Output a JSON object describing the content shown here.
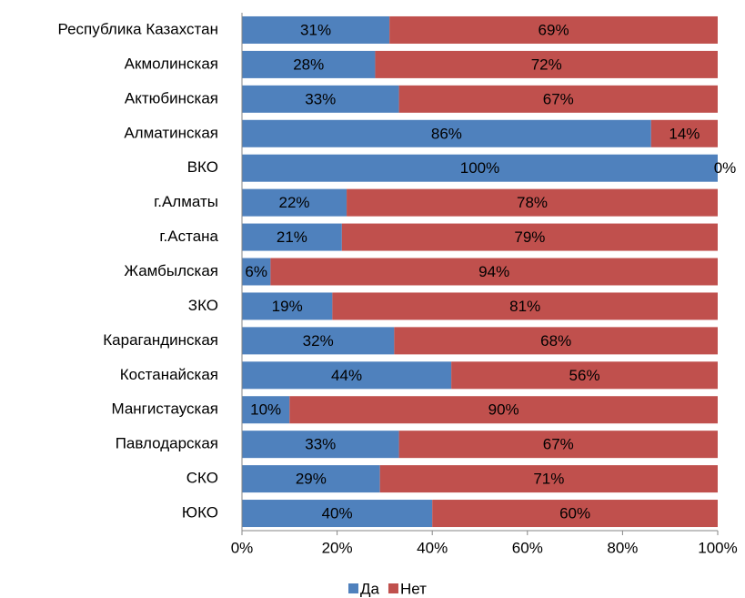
{
  "chart_data": {
    "type": "stacked_barh",
    "categories": [
      "Республика Казахстан",
      "Акмолинская",
      "Актюбинская",
      "Алматинская",
      "ВКО",
      "г.Алматы",
      "г.Астана",
      "Жамбылская",
      "ЗКО",
      "Карагандинская",
      "Костанайская",
      "Мангистауская",
      "Павлодарская",
      "СКО",
      "ЮКО"
    ],
    "series": [
      {
        "name": "Да",
        "color": "#4f81bd",
        "values": [
          31,
          28,
          33,
          86,
          100,
          22,
          21,
          6,
          19,
          32,
          44,
          10,
          33,
          29,
          40
        ],
        "value_labels": [
          "31%",
          "28%",
          "33%",
          "86%",
          "100%",
          "22%",
          "21%",
          "6%",
          "19%",
          "32%",
          "44%",
          "10%",
          "33%",
          "29%",
          "40%"
        ]
      },
      {
        "name": "Нет",
        "color": "#c0504d",
        "values": [
          69,
          72,
          67,
          14,
          0,
          78,
          79,
          94,
          81,
          68,
          56,
          90,
          67,
          71,
          60
        ],
        "value_labels": [
          "69%",
          "72%",
          "67%",
          "14%",
          "0%",
          "78%",
          "79%",
          "94%",
          "81%",
          "68%",
          "56%",
          "90%",
          "67%",
          "71%",
          "60%"
        ]
      }
    ],
    "xlim": [
      0,
      100
    ],
    "xticks": [
      {
        "value": 0,
        "label": "0%"
      },
      {
        "value": 20,
        "label": "20%"
      },
      {
        "value": 40,
        "label": "40%"
      },
      {
        "value": 60,
        "label": "60%"
      },
      {
        "value": 80,
        "label": "80%"
      },
      {
        "value": 100,
        "label": "100%"
      }
    ],
    "grid": false,
    "legend": "bottom"
  }
}
